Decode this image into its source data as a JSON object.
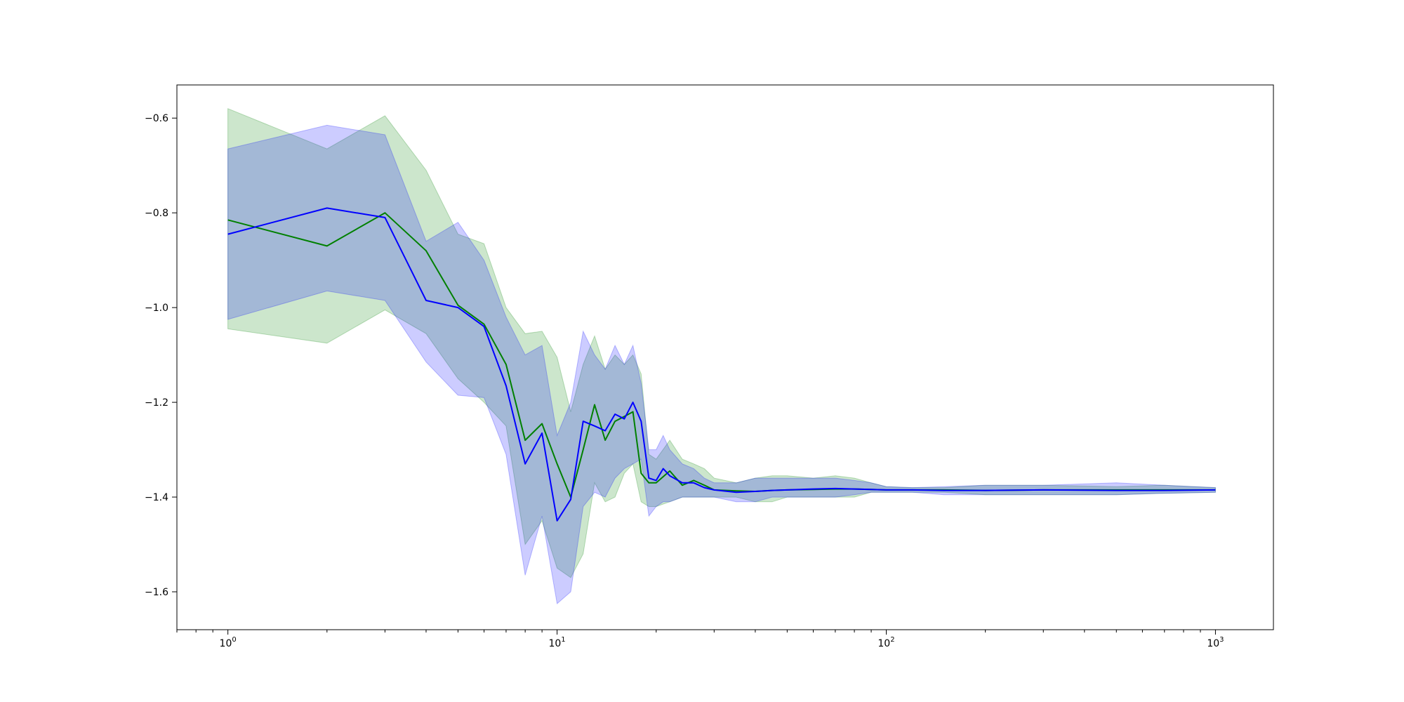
{
  "chart_data": {
    "type": "line",
    "title": "",
    "xlabel": "",
    "ylabel": "",
    "x_scale": "log",
    "xlim": [
      0.7,
      1500
    ],
    "ylim": [
      -1.68,
      -0.53
    ],
    "grid": false,
    "legend": "none",
    "x_ticks": [
      {
        "value": 1,
        "base": "10",
        "exp": "0"
      },
      {
        "value": 10,
        "base": "10",
        "exp": "1"
      },
      {
        "value": 100,
        "base": "10",
        "exp": "2"
      },
      {
        "value": 1000,
        "base": "10",
        "exp": "3"
      }
    ],
    "y_ticks": [
      {
        "value": -0.6,
        "label": "−0.6"
      },
      {
        "value": -0.8,
        "label": "−0.8"
      },
      {
        "value": -1.0,
        "label": "−1.0"
      },
      {
        "value": -1.2,
        "label": "−1.2"
      },
      {
        "value": -1.4,
        "label": "−1.4"
      },
      {
        "value": -1.6,
        "label": "−1.6"
      }
    ],
    "series": [
      {
        "color": "#008000",
        "fill_color": "#008000",
        "x": [
          1,
          2,
          3,
          4,
          5,
          6,
          7,
          8,
          9,
          10,
          11,
          12,
          13,
          14,
          15,
          16,
          17,
          18,
          19,
          20,
          22,
          24,
          26,
          28,
          30,
          35,
          40,
          45,
          50,
          60,
          70,
          80,
          90,
          100,
          120,
          150,
          200,
          300,
          500,
          700,
          1000
        ],
        "y": [
          -0.815,
          -0.87,
          -0.8,
          -0.88,
          -0.995,
          -1.035,
          -1.12,
          -1.28,
          -1.245,
          -1.33,
          -1.4,
          -1.3,
          -1.205,
          -1.28,
          -1.24,
          -1.23,
          -1.22,
          -1.35,
          -1.37,
          -1.37,
          -1.345,
          -1.375,
          -1.365,
          -1.375,
          -1.385,
          -1.387,
          -1.388,
          -1.386,
          -1.385,
          -1.384,
          -1.383,
          -1.383,
          -1.384,
          -1.385,
          -1.385,
          -1.385,
          -1.386,
          -1.385,
          -1.385,
          -1.385,
          -1.385
        ],
        "lower": [
          -1.045,
          -1.075,
          -1.005,
          -1.055,
          -1.15,
          -1.2,
          -1.25,
          -1.5,
          -1.45,
          -1.55,
          -1.57,
          -1.52,
          -1.37,
          -1.41,
          -1.4,
          -1.35,
          -1.33,
          -1.41,
          -1.42,
          -1.42,
          -1.41,
          -1.4,
          -1.4,
          -1.4,
          -1.4,
          -1.4,
          -1.41,
          -1.41,
          -1.4,
          -1.4,
          -1.4,
          -1.4,
          -1.39,
          -1.39,
          -1.39,
          -1.39,
          -1.395,
          -1.395,
          -1.395,
          -1.392,
          -1.39
        ],
        "upper": [
          -0.58,
          -0.665,
          -0.595,
          -0.71,
          -0.845,
          -0.865,
          -1.0,
          -1.055,
          -1.05,
          -1.105,
          -1.22,
          -1.12,
          -1.06,
          -1.13,
          -1.1,
          -1.12,
          -1.1,
          -1.14,
          -1.31,
          -1.32,
          -1.28,
          -1.32,
          -1.33,
          -1.34,
          -1.36,
          -1.37,
          -1.36,
          -1.355,
          -1.355,
          -1.36,
          -1.355,
          -1.36,
          -1.37,
          -1.378,
          -1.38,
          -1.38,
          -1.375,
          -1.375,
          -1.378,
          -1.375,
          -1.38
        ]
      },
      {
        "color": "#0000ff",
        "fill_color": "#0000ff",
        "x": [
          1,
          2,
          3,
          4,
          5,
          6,
          7,
          8,
          9,
          10,
          11,
          12,
          13,
          14,
          15,
          16,
          17,
          18,
          19,
          20,
          21,
          22,
          24,
          26,
          28,
          30,
          35,
          40,
          45,
          50,
          60,
          70,
          80,
          90,
          100,
          120,
          150,
          200,
          300,
          500,
          700,
          1000
        ],
        "y": [
          -0.845,
          -0.79,
          -0.81,
          -0.985,
          -1.0,
          -1.04,
          -1.165,
          -1.33,
          -1.265,
          -1.45,
          -1.405,
          -1.24,
          -1.25,
          -1.26,
          -1.225,
          -1.235,
          -1.2,
          -1.24,
          -1.36,
          -1.365,
          -1.34,
          -1.355,
          -1.37,
          -1.37,
          -1.38,
          -1.385,
          -1.39,
          -1.388,
          -1.386,
          -1.385,
          -1.383,
          -1.382,
          -1.383,
          -1.384,
          -1.385,
          -1.385,
          -1.386,
          -1.386,
          -1.385,
          -1.386,
          -1.386,
          -1.385
        ],
        "lower": [
          -1.025,
          -0.965,
          -0.985,
          -1.115,
          -1.185,
          -1.19,
          -1.31,
          -1.565,
          -1.44,
          -1.625,
          -1.6,
          -1.42,
          -1.39,
          -1.4,
          -1.36,
          -1.34,
          -1.33,
          -1.32,
          -1.44,
          -1.42,
          -1.41,
          -1.41,
          -1.4,
          -1.4,
          -1.4,
          -1.4,
          -1.41,
          -1.41,
          -1.4,
          -1.4,
          -1.4,
          -1.4,
          -1.395,
          -1.39,
          -1.39,
          -1.39,
          -1.395,
          -1.395,
          -1.395,
          -1.395,
          -1.392,
          -1.39
        ],
        "upper": [
          -0.665,
          -0.615,
          -0.635,
          -0.86,
          -0.82,
          -0.9,
          -1.02,
          -1.1,
          -1.08,
          -1.27,
          -1.2,
          -1.05,
          -1.1,
          -1.13,
          -1.08,
          -1.12,
          -1.08,
          -1.16,
          -1.3,
          -1.3,
          -1.27,
          -1.3,
          -1.33,
          -1.34,
          -1.36,
          -1.37,
          -1.37,
          -1.36,
          -1.36,
          -1.36,
          -1.36,
          -1.36,
          -1.365,
          -1.37,
          -1.378,
          -1.38,
          -1.378,
          -1.375,
          -1.375,
          -1.37,
          -1.375,
          -1.38
        ]
      }
    ]
  }
}
